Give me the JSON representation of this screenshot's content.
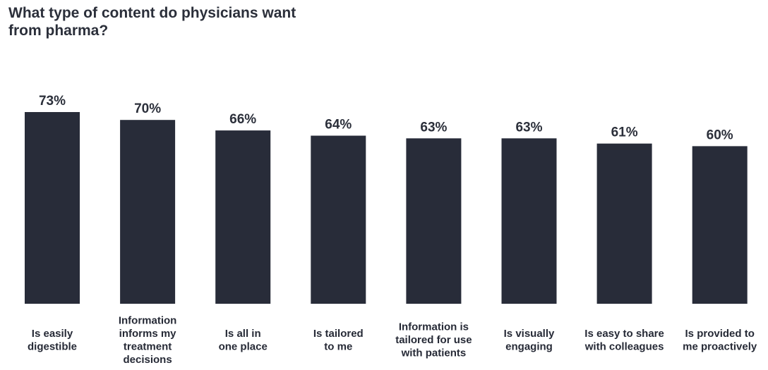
{
  "chart_data": {
    "type": "bar",
    "title": "What type of content do physicians want from pharma?",
    "categories": [
      "Is easily digestible",
      "Information informs my treatment decisions",
      "Is all in one place",
      "Is tailored to me",
      "Information is tailored for use with patients",
      "Is visually engaging",
      "Is easy to share with colleagues",
      "Is provided to me proactively"
    ],
    "category_lines": [
      [
        "Is easily",
        "digestible"
      ],
      [
        "Information",
        "informs my",
        "treatment",
        "decisions"
      ],
      [
        "Is all in",
        "one place"
      ],
      [
        "Is tailored",
        "to me"
      ],
      [
        "Information is",
        "tailored for use",
        "with patients"
      ],
      [
        "Is visually",
        "engaging"
      ],
      [
        "Is easy to share",
        "with colleagues"
      ],
      [
        "Is provided to",
        "me proactively"
      ]
    ],
    "values": [
      73,
      70,
      66,
      64,
      63,
      63,
      61,
      60
    ],
    "value_labels": [
      "73%",
      "70%",
      "66%",
      "64%",
      "63%",
      "63%",
      "61%",
      "60%"
    ],
    "unit": "%",
    "ylim": [
      0,
      73
    ],
    "grid": false,
    "legend": "none",
    "bar_color": "#282c39"
  }
}
